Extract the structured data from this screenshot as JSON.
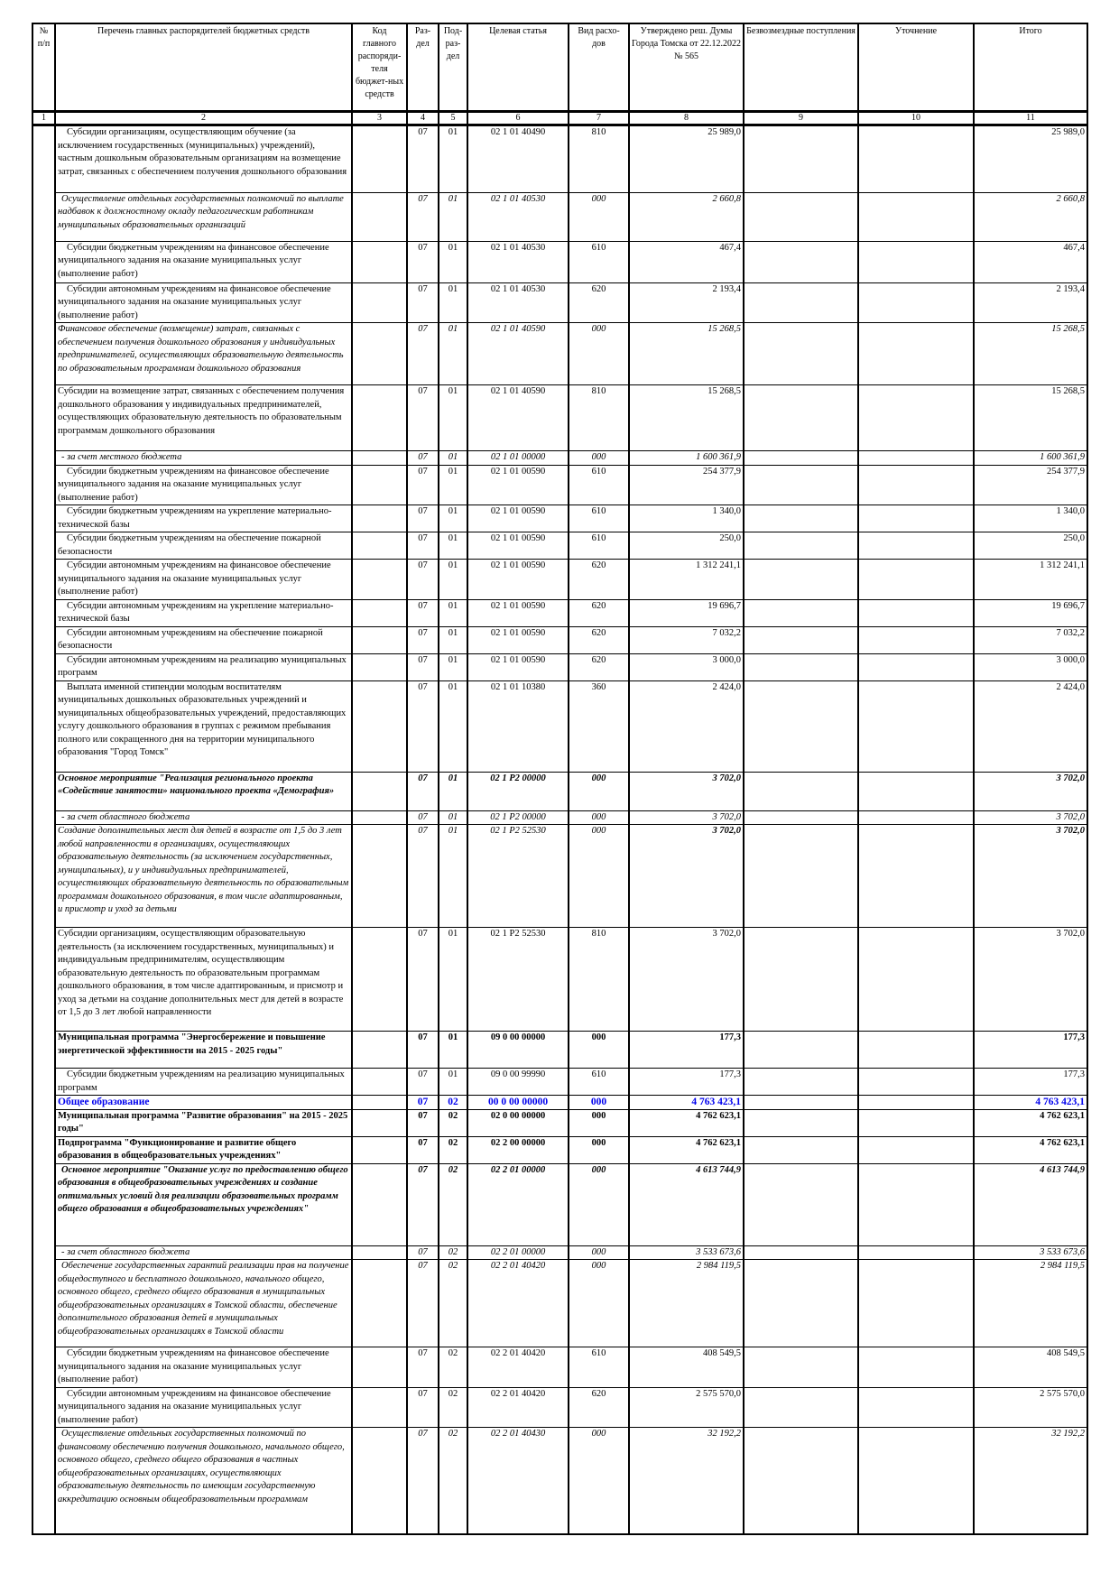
{
  "header": {
    "columns": [
      "№ п/п",
      "Перечень главных распорядителей бюджетных средств",
      "Код главного распоряди-теля бюджет-ных средств",
      "Раз-дел",
      "Под-раз-дел",
      "Целевая статья",
      "Вид расхо-дов",
      "Утверждено реш. Думы Города Томска от 22.12.2022 № 565",
      "Безвозмездные поступления",
      "Уточнение",
      "Итого"
    ],
    "numbers": [
      "1",
      "2",
      "3",
      "4",
      "5",
      "6",
      "7",
      "8",
      "9",
      "10",
      "11"
    ]
  },
  "colors": {
    "text": "#000000",
    "section_highlight": "#0000ee"
  },
  "rows": [
    {
      "style": "normal",
      "desc": "Субсидии организациям, осуществляющим обучение (за исключением государственных (муниципальных) учреждений), частным дошкольным образовательным организациям на возмещение затрат, связанных с обеспечением получения дошкольного образования",
      "code": "",
      "razdel": "07",
      "podrazdel": "01",
      "target": "02 1 01 40490",
      "vid": "810",
      "approved": "25 989,0",
      "bezv": "",
      "utoch": "",
      "total": "25 989,0"
    },
    {
      "style": "italic",
      "desc": "Осуществление отдельных государственных полномочий по выплате надбавок к должностному окладу педагогическим работникам муниципальных образовательных организаций",
      "code": "",
      "razdel": "07",
      "podrazdel": "01",
      "target": "02 1 01 40530",
      "vid": "000",
      "approved": "2 660,8",
      "bezv": "",
      "utoch": "",
      "total": "2 660,8"
    },
    {
      "style": "normal",
      "desc": "Субсидии бюджетным учреждениям на финансовое обеспечение муниципального задания на оказание муниципальных услуг (выполнение работ)",
      "code": "",
      "razdel": "07",
      "podrazdel": "01",
      "target": "02 1 01 40530",
      "vid": "610",
      "approved": "467,4",
      "bezv": "",
      "utoch": "",
      "total": "467,4"
    },
    {
      "style": "normal",
      "desc": "Субсидии автономным учреждениям на финансовое обеспечение муниципального задания на оказание муниципальных услуг (выполнение работ)",
      "code": "",
      "razdel": "07",
      "podrazdel": "01",
      "target": "02 1 01 40530",
      "vid": "620",
      "approved": "2 193,4",
      "bezv": "",
      "utoch": "",
      "total": "2 193,4"
    },
    {
      "style": "italic",
      "desc": "Финансовое обеспечение (возмещение) затрат, связанных с обеспечением получения дошкольного образования у индивидуальных предпринимателей, осуществляющих образовательную деятельность по образовательным программам дошкольного образования",
      "code": "",
      "razdel": "07",
      "podrazdel": "01",
      "target": "02 1 01 40590",
      "vid": "000",
      "approved": "15 268,5",
      "bezv": "",
      "utoch": "",
      "total": "15 268,5"
    },
    {
      "style": "normal",
      "desc": "Субсидии на возмещение затрат, связанных с обеспечением получения дошкольного образования у индивидуальных предпринимателей, осуществляющих образовательную деятельность по образовательным программам дошкольного образования",
      "code": "",
      "razdel": "07",
      "podrazdel": "01",
      "target": "02 1 01 40590",
      "vid": "810",
      "approved": "15 268,5",
      "bezv": "",
      "utoch": "",
      "total": "15 268,5"
    },
    {
      "style": "italic",
      "desc": "- за счет местного бюджета",
      "code": "",
      "razdel": "07",
      "podrazdel": "01",
      "target": "02 1 01 00000",
      "vid": "000",
      "approved": "1 600 361,9",
      "bezv": "",
      "utoch": "",
      "total": "1 600 361,9"
    },
    {
      "style": "normal",
      "desc": "Субсидии бюджетным учреждениям на финансовое обеспечение муниципального задания на оказание муниципальных услуг (выполнение работ)",
      "code": "",
      "razdel": "07",
      "podrazdel": "01",
      "target": "02 1 01 00590",
      "vid": "610",
      "approved": "254 377,9",
      "bezv": "",
      "utoch": "",
      "total": "254 377,9"
    },
    {
      "style": "normal",
      "desc": "Субсидии бюджетным учреждениям на укрепление материально-технической базы",
      "code": "",
      "razdel": "07",
      "podrazdel": "01",
      "target": "02 1 01 00590",
      "vid": "610",
      "approved": "1 340,0",
      "bezv": "",
      "utoch": "",
      "total": "1 340,0"
    },
    {
      "style": "normal",
      "desc": "Субсидии бюджетным учреждениям на обеспечение пожарной безопасности",
      "code": "",
      "razdel": "07",
      "podrazdel": "01",
      "target": "02 1 01 00590",
      "vid": "610",
      "approved": "250,0",
      "bezv": "",
      "utoch": "",
      "total": "250,0"
    },
    {
      "style": "normal",
      "desc": "Субсидии автономным учреждениям на финансовое обеспечение муниципального задания на оказание муниципальных услуг (выполнение работ)",
      "code": "",
      "razdel": "07",
      "podrazdel": "01",
      "target": "02 1 01 00590",
      "vid": "620",
      "approved": "1 312 241,1",
      "bezv": "",
      "utoch": "",
      "total": "1 312 241,1"
    },
    {
      "style": "normal",
      "desc": "Субсидии автономным учреждениям на укрепление материально-технической базы",
      "code": "",
      "razdel": "07",
      "podrazdel": "01",
      "target": "02 1 01 00590",
      "vid": "620",
      "approved": "19 696,7",
      "bezv": "",
      "utoch": "",
      "total": "19 696,7"
    },
    {
      "style": "normal",
      "desc": "Субсидии автономным учреждениям на обеспечение пожарной безопасности",
      "code": "",
      "razdel": "07",
      "podrazdel": "01",
      "target": "02 1 01 00590",
      "vid": "620",
      "approved": "7 032,2",
      "bezv": "",
      "utoch": "",
      "total": "7 032,2"
    },
    {
      "style": "normal",
      "desc": "Субсидии автономным учреждениям на реализацию муниципальных программ",
      "code": "",
      "razdel": "07",
      "podrazdel": "01",
      "target": "02 1 01 00590",
      "vid": "620",
      "approved": "3 000,0",
      "bezv": "",
      "utoch": "",
      "total": "3 000,0"
    },
    {
      "style": "normal",
      "desc": "Выплата именной стипендии молодым воспитателям муниципальных дошкольных образовательных учреждений и муниципальных общеобразовательных учреждений, предоставляющих услугу дошкольного образования в группах с режимом пребывания полного или сокращенного дня на территории муниципального образования \"Город Томск\"",
      "code": "",
      "razdel": "07",
      "podrazdel": "01",
      "target": "02 1 01 10380",
      "vid": "360",
      "approved": "2 424,0",
      "bezv": "",
      "utoch": "",
      "total": "2 424,0"
    },
    {
      "style": "bolditalic",
      "desc": "Основное мероприятие \"Реализация регионального проекта «Содействие занятости» национального проекта «Демография»",
      "code": "",
      "razdel": "07",
      "podrazdel": "01",
      "target": "02 1 P2 00000",
      "vid": "000",
      "approved": "3 702,0",
      "bezv": "",
      "utoch": "",
      "total": "3 702,0"
    },
    {
      "style": "italic",
      "desc": "- за счет областного бюджета",
      "code": "",
      "razdel": "07",
      "podrazdel": "01",
      "target": "02 1 P2 00000",
      "vid": "000",
      "approved": "3 702,0",
      "bezv": "",
      "utoch": "",
      "total": "3 702,0"
    },
    {
      "style": "italic",
      "strong_values": true,
      "desc": "Создание дополнительных мест для детей в возрасте от 1,5 до 3 лет любой направленности в организациях, осуществляющих образовательную деятельность (за исключением государственных, муниципальных), и у индивидуальных предпринимателей, осуществляющих образовательную деятельность по образовательным программам дошкольного образования, в том числе адаптированным, и присмотр и уход за детьми",
      "code": "",
      "razdel": "07",
      "podrazdel": "01",
      "target": "02 1 P2 52530",
      "vid": "000",
      "approved": "3 702,0",
      "bezv": "",
      "utoch": "",
      "total": "3 702,0"
    },
    {
      "style": "normal",
      "desc": "Субсидии организациям, осуществляющим образовательную деятельность (за исключением государственных, муниципальных) и индивидуальным предпринимателям, осуществляющим образовательную деятельность по образовательным программам дошкольного образования, в том числе адаптированным, и присмотр и уход за детьми на создание дополнительных мест для детей в возрасте от 1,5 до 3 лет любой направленности",
      "code": "",
      "razdel": "07",
      "podrazdel": "01",
      "target": "02 1 P2 52530",
      "vid": "810",
      "approved": "3 702,0",
      "bezv": "",
      "utoch": "",
      "total": "3 702,0"
    },
    {
      "style": "bold",
      "desc": "Муниципальная программа \"Энергосбережение и повышение энергетической эффективности на 2015 - 2025 годы\"",
      "code": "",
      "razdel": "07",
      "podrazdel": "01",
      "target": "09 0 00 00000",
      "vid": "000",
      "approved": "177,3",
      "bezv": "",
      "utoch": "",
      "total": "177,3"
    },
    {
      "style": "normal",
      "desc": "Субсидии бюджетным учреждениям на реализацию муниципальных программ",
      "code": "",
      "razdel": "07",
      "podrazdel": "01",
      "target": "09 0 00 99990",
      "vid": "610",
      "approved": "177,3",
      "bezv": "",
      "utoch": "",
      "total": "177,3"
    },
    {
      "style": "blue",
      "desc": "Общее образование",
      "code": "",
      "razdel": "07",
      "podrazdel": "02",
      "target": "00 0 00 00000",
      "vid": "000",
      "approved": "4 763 423,1",
      "bezv": "",
      "utoch": "",
      "total": "4 763 423,1"
    },
    {
      "style": "bold",
      "desc": "Муниципальная программа \"Развитие образования\" на 2015 - 2025 годы\"",
      "code": "",
      "razdel": "07",
      "podrazdel": "02",
      "target": "02 0 00 00000",
      "vid": "000",
      "approved": "4 762 623,1",
      "bezv": "",
      "utoch": "",
      "total": "4 762 623,1"
    },
    {
      "style": "bold",
      "desc": "Подпрограмма \"Функционирование и развитие общего образования в общеобразовательных учреждениях\"",
      "code": "",
      "razdel": "07",
      "podrazdel": "02",
      "target": "02 2 00 00000",
      "vid": "000",
      "approved": "4 762 623,1",
      "bezv": "",
      "utoch": "",
      "total": "4 762 623,1"
    },
    {
      "style": "bolditalic",
      "desc": "Основное мероприятие \"Оказание услуг по предоставлению общего образования в общеобразовательных учреждениях и создание оптимальных условий для реализации образовательных программ общего образования в общеобразовательных учреждениях\"",
      "code": "",
      "razdel": "07",
      "podrazdel": "02",
      "target": "02 2 01 00000",
      "vid": "000",
      "approved": "4 613 744,9",
      "bezv": "",
      "utoch": "",
      "total": "4 613 744,9"
    },
    {
      "style": "italic",
      "desc": "- за счет областного бюджета",
      "code": "",
      "razdel": "07",
      "podrazdel": "02",
      "target": "02 2 01 00000",
      "vid": "000",
      "approved": "3 533 673,6",
      "bezv": "",
      "utoch": "",
      "total": "3 533 673,6"
    },
    {
      "style": "italic",
      "desc": "Обеспечение государственных гарантий реализации прав на получение общедоступного и бесплатного дошкольного, начального общего, основного общего, среднего общего образования в муниципальных общеобразовательных организациях в Томской области, обеспечение дополнительного образования детей в муниципальных общеобразовательных организациях в Томской области",
      "code": "",
      "razdel": "07",
      "podrazdel": "02",
      "target": "02 2 01 40420",
      "vid": "000",
      "approved": "2 984 119,5",
      "bezv": "",
      "utoch": "",
      "total": "2 984 119,5"
    },
    {
      "style": "normal",
      "desc": "Субсидии бюджетным учреждениям на финансовое обеспечение муниципального задания на оказание муниципальных услуг (выполнение работ)",
      "code": "",
      "razdel": "07",
      "podrazdel": "02",
      "target": "02 2 01 40420",
      "vid": "610",
      "approved": "408 549,5",
      "bezv": "",
      "utoch": "",
      "total": "408 549,5"
    },
    {
      "style": "normal",
      "desc": "Субсидии автономным учреждениям на финансовое обеспечение муниципального задания на оказание муниципальных услуг (выполнение работ)",
      "code": "",
      "razdel": "07",
      "podrazdel": "02",
      "target": "02 2 01 40420",
      "vid": "620",
      "approved": "2 575 570,0",
      "bezv": "",
      "utoch": "",
      "total": "2 575 570,0"
    },
    {
      "style": "italic",
      "desc": "Осуществление отдельных государственных полномочий по финансовому обеспечению получения дошкольного, начального общего, основного общего, среднего общего образования в частных общеобразовательных организациях, осуществляющих образовательную деятельность по имеющим государственную аккредитацию основным общеобразовательным программам",
      "code": "",
      "razdel": "07",
      "podrazdel": "02",
      "target": "02 2 01 40430",
      "vid": "000",
      "approved": "32 192,2",
      "bezv": "",
      "utoch": "",
      "total": "32 192,2"
    }
  ]
}
